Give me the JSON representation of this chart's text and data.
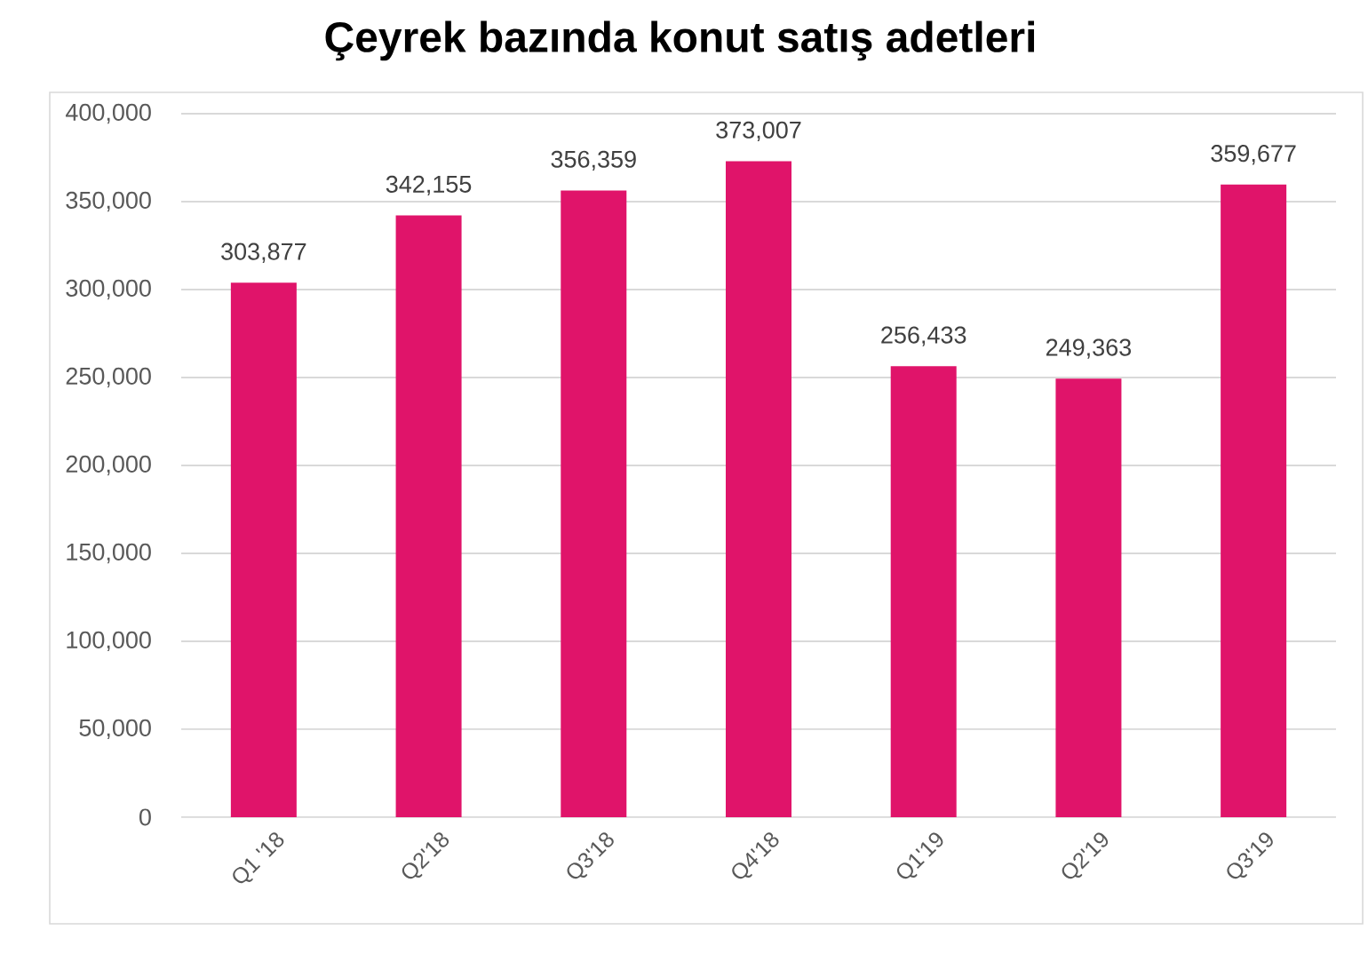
{
  "chart_data": {
    "type": "bar",
    "title": "Çeyrek bazında konut satış adetleri",
    "categories": [
      "Q1 '18",
      "Q2'18",
      "Q3'18",
      "Q4'18",
      "Q1'19",
      "Q2'19",
      "Q3'19"
    ],
    "values": [
      303877,
      342155,
      356359,
      373007,
      256433,
      249363,
      359677
    ],
    "value_labels": [
      "303,877",
      "342,155",
      "356,359",
      "373,007",
      "256,433",
      "249,363",
      "359,677"
    ],
    "color": "#e0146a",
    "ylim": [
      0,
      400000
    ],
    "yticks": [
      0,
      {
        "value": 50000,
        "label": "50,000"
      },
      {
        "value": 100000,
        "label": "100,000"
      },
      {
        "value": 150000,
        "label": "150,000"
      },
      {
        "value": 200000,
        "label": "200,000"
      },
      {
        "value": 250000,
        "label": "250,000"
      },
      {
        "value": 300000,
        "label": "300,000"
      },
      {
        "value": 350000,
        "label": "350,000"
      },
      {
        "value": 400000,
        "label": "400,000"
      }
    ],
    "grid": "y"
  }
}
